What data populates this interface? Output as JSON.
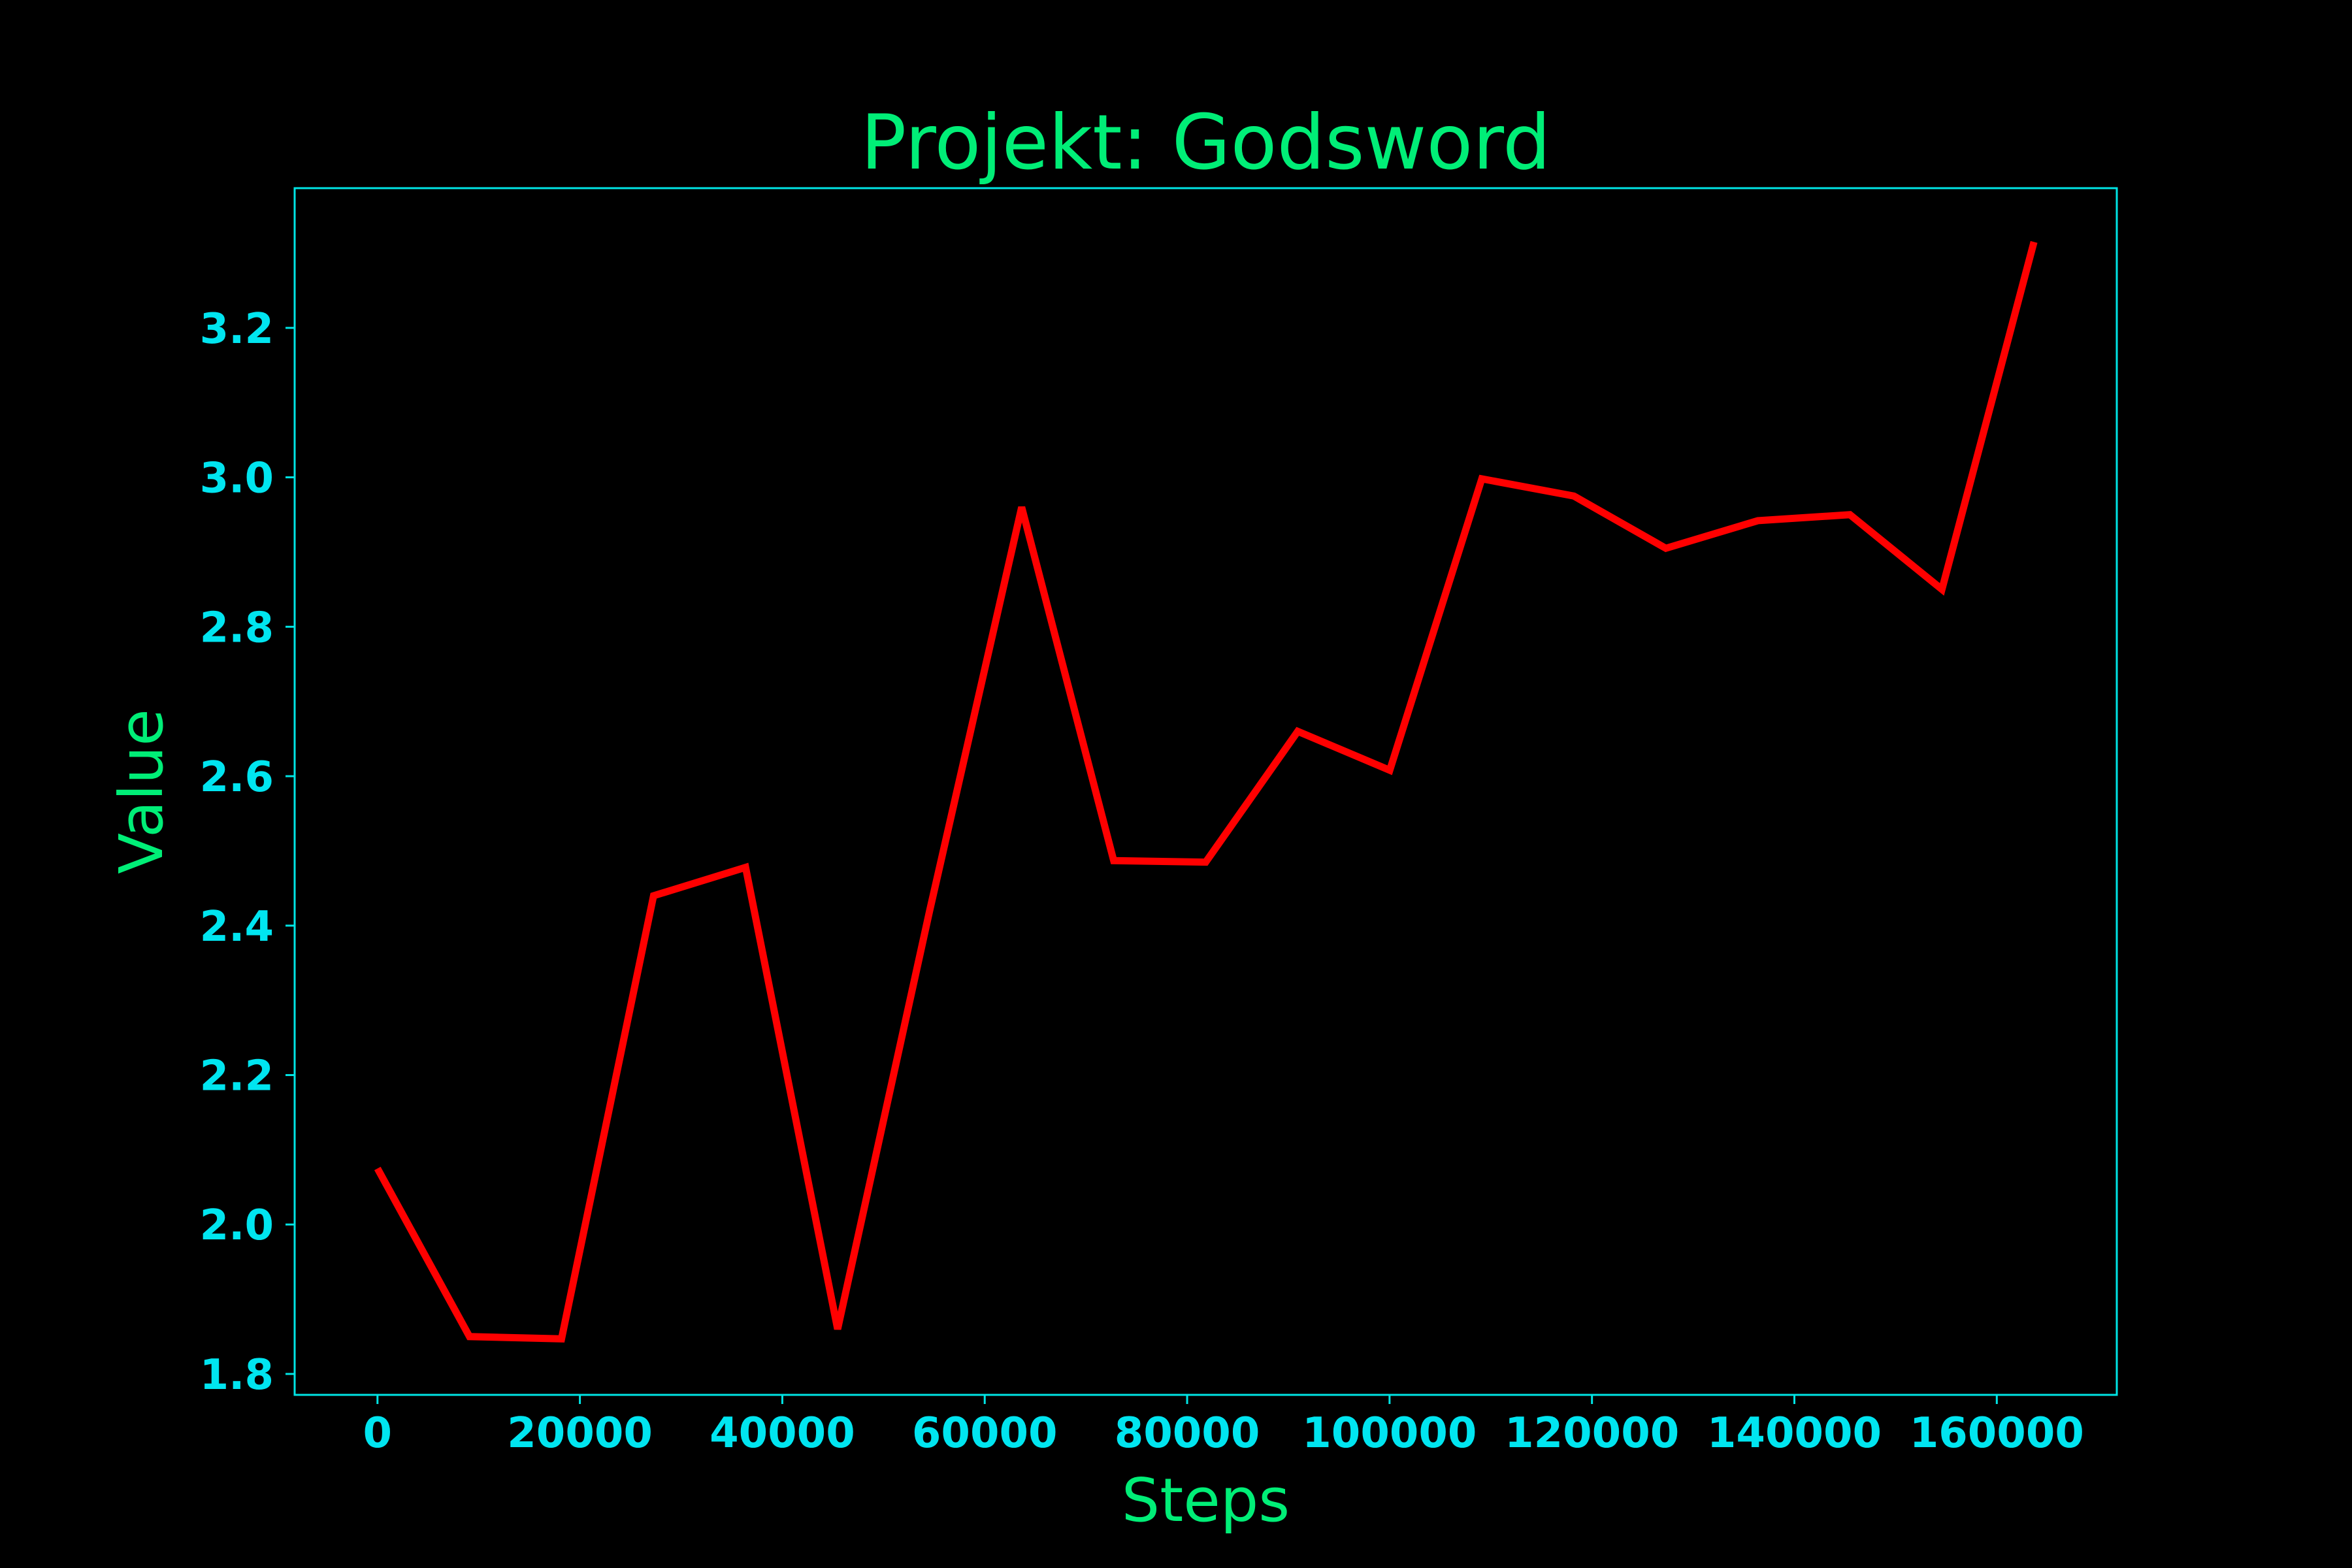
{
  "chart_data": {
    "type": "line",
    "title": "Projekt: Godsword",
    "xlabel": "Steps",
    "ylabel": "Value",
    "x": [
      0,
      9093,
      18186,
      27279,
      36372,
      45465,
      54558,
      63651,
      72744,
      81837,
      90930,
      100023,
      109116,
      118209,
      127302,
      136395,
      145488,
      154581,
      163674
    ],
    "series": [
      {
        "values": [
          2.075,
          1.85,
          1.847,
          2.44,
          2.478,
          1.86,
          2.42,
          2.96,
          2.487,
          2.485,
          2.66,
          2.608,
          2.998,
          2.975,
          2.905,
          2.942,
          2.95,
          2.85,
          3.315
        ]
      }
    ],
    "xlim": [
      -8184,
      171858
    ],
    "ylim": [
      1.772,
      3.387
    ],
    "xticks": [
      0,
      20000,
      40000,
      60000,
      80000,
      100000,
      120000,
      140000,
      160000
    ],
    "xtick_labels": [
      "0",
      "20000",
      "40000",
      "60000",
      "80000",
      "100000",
      "120000",
      "140000",
      "160000"
    ],
    "yticks": [
      1.8,
      2.0,
      2.2,
      2.4,
      2.6,
      2.8,
      3.0,
      3.2
    ],
    "ytick_labels": [
      "1.8",
      "2.0",
      "2.2",
      "2.4",
      "2.6",
      "2.8",
      "3.0",
      "3.2"
    ],
    "grid": false,
    "legend": "none",
    "colors": {
      "background": "#000000",
      "line": "#ff0000",
      "frame": "#00e5e5",
      "tick_labels": "#00e5f0",
      "title": "#00ee77",
      "axis_titles": "#00ee77"
    }
  }
}
